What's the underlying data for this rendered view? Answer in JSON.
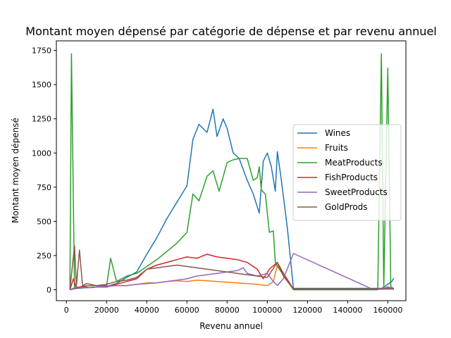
{
  "chart_data": {
    "type": "line",
    "title": "Montant moyen dépensé par catégorie de dépense et par revenu annuel",
    "xlabel": "Revenu annuel",
    "ylabel": "Montant moyen dépensé",
    "xlim": [
      -5000,
      169000
    ],
    "ylim": [
      -80,
      1820
    ],
    "xticks": [
      0,
      20000,
      40000,
      60000,
      80000,
      100000,
      120000,
      140000,
      160000
    ],
    "xtick_labels": [
      "0",
      "20000",
      "40000",
      "60000",
      "80000",
      "100000",
      "120000",
      "140000",
      "160000"
    ],
    "yticks": [
      0,
      250,
      500,
      750,
      1000,
      1250,
      1500,
      1750
    ],
    "ytick_labels": [
      "0",
      "250",
      "500",
      "750",
      "1000",
      "1250",
      "1500",
      "1750"
    ],
    "legend_position": "center-right",
    "grid": false,
    "series": [
      {
        "name": "Wines",
        "color": "#1f77b4",
        "points": [
          [
            1730,
            0
          ],
          [
            5000,
            10
          ],
          [
            10000,
            15
          ],
          [
            15000,
            20
          ],
          [
            20000,
            25
          ],
          [
            25000,
            45
          ],
          [
            30000,
            90
          ],
          [
            35000,
            130
          ],
          [
            40000,
            260
          ],
          [
            45000,
            380
          ],
          [
            50000,
            520
          ],
          [
            55000,
            640
          ],
          [
            60000,
            760
          ],
          [
            63000,
            1100
          ],
          [
            66000,
            1210
          ],
          [
            70000,
            1150
          ],
          [
            73000,
            1320
          ],
          [
            75000,
            1120
          ],
          [
            78000,
            1250
          ],
          [
            80000,
            1180
          ],
          [
            83000,
            1000
          ],
          [
            86000,
            960
          ],
          [
            90000,
            800
          ],
          [
            93000,
            700
          ],
          [
            96000,
            560
          ],
          [
            98000,
            940
          ],
          [
            100000,
            1000
          ],
          [
            102000,
            900
          ],
          [
            104000,
            720
          ],
          [
            105000,
            1010
          ],
          [
            107000,
            800
          ],
          [
            110000,
            450
          ],
          [
            113000,
            10
          ],
          [
            157000,
            10
          ],
          [
            160000,
            40
          ],
          [
            162000,
            60
          ],
          [
            163000,
            85
          ]
        ]
      },
      {
        "name": "Fruits",
        "color": "#ff7f0e",
        "points": [
          [
            1730,
            0
          ],
          [
            5000,
            20
          ],
          [
            10000,
            15
          ],
          [
            15000,
            20
          ],
          [
            20000,
            30
          ],
          [
            25000,
            30
          ],
          [
            30000,
            30
          ],
          [
            35000,
            40
          ],
          [
            40000,
            50
          ],
          [
            45000,
            50
          ],
          [
            50000,
            60
          ],
          [
            55000,
            65
          ],
          [
            60000,
            60
          ],
          [
            65000,
            70
          ],
          [
            70000,
            65
          ],
          [
            75000,
            60
          ],
          [
            80000,
            55
          ],
          [
            85000,
            50
          ],
          [
            90000,
            45
          ],
          [
            95000,
            40
          ],
          [
            100000,
            30
          ],
          [
            103000,
            60
          ],
          [
            105000,
            180
          ],
          [
            108000,
            120
          ],
          [
            113000,
            5
          ],
          [
            157000,
            5
          ],
          [
            160000,
            10
          ],
          [
            163000,
            5
          ]
        ]
      },
      {
        "name": "MeatProducts",
        "color": "#2ca02c",
        "points": [
          [
            1730,
            0
          ],
          [
            2500,
            1725
          ],
          [
            4000,
            10
          ],
          [
            6000,
            20
          ],
          [
            10000,
            30
          ],
          [
            15000,
            30
          ],
          [
            20000,
            30
          ],
          [
            22000,
            230
          ],
          [
            25000,
            60
          ],
          [
            30000,
            100
          ],
          [
            35000,
            120
          ],
          [
            40000,
            170
          ],
          [
            45000,
            220
          ],
          [
            50000,
            280
          ],
          [
            55000,
            340
          ],
          [
            60000,
            420
          ],
          [
            63000,
            700
          ],
          [
            66000,
            650
          ],
          [
            70000,
            830
          ],
          [
            73000,
            870
          ],
          [
            76000,
            720
          ],
          [
            80000,
            930
          ],
          [
            83000,
            950
          ],
          [
            86000,
            960
          ],
          [
            90000,
            960
          ],
          [
            93000,
            800
          ],
          [
            95000,
            820
          ],
          [
            96000,
            900
          ],
          [
            97000,
            730
          ],
          [
            99000,
            700
          ],
          [
            101000,
            420
          ],
          [
            103000,
            430
          ],
          [
            104000,
            200
          ],
          [
            106000,
            150
          ],
          [
            113000,
            0
          ],
          [
            155000,
            0
          ],
          [
            156800,
            1725
          ],
          [
            158000,
            10
          ],
          [
            160000,
            1620
          ],
          [
            161500,
            20
          ],
          [
            163000,
            10
          ]
        ]
      },
      {
        "name": "FishProducts",
        "color": "#d62728",
        "points": [
          [
            1730,
            0
          ],
          [
            3500,
            80
          ],
          [
            5000,
            10
          ],
          [
            8000,
            25
          ],
          [
            12000,
            15
          ],
          [
            15000,
            20
          ],
          [
            20000,
            20
          ],
          [
            25000,
            40
          ],
          [
            30000,
            60
          ],
          [
            35000,
            80
          ],
          [
            40000,
            150
          ],
          [
            45000,
            180
          ],
          [
            50000,
            200
          ],
          [
            55000,
            220
          ],
          [
            60000,
            240
          ],
          [
            65000,
            230
          ],
          [
            70000,
            260
          ],
          [
            75000,
            240
          ],
          [
            80000,
            230
          ],
          [
            85000,
            220
          ],
          [
            90000,
            200
          ],
          [
            95000,
            150
          ],
          [
            98000,
            80
          ],
          [
            101000,
            150
          ],
          [
            105000,
            200
          ],
          [
            108000,
            120
          ],
          [
            113000,
            5
          ],
          [
            157000,
            5
          ],
          [
            160000,
            20
          ],
          [
            163000,
            5
          ]
        ]
      },
      {
        "name": "SweetProducts",
        "color": "#9467bd",
        "points": [
          [
            1730,
            0
          ],
          [
            5000,
            20
          ],
          [
            10000,
            15
          ],
          [
            15000,
            20
          ],
          [
            20000,
            25
          ],
          [
            25000,
            30
          ],
          [
            30000,
            30
          ],
          [
            35000,
            40
          ],
          [
            40000,
            45
          ],
          [
            45000,
            50
          ],
          [
            50000,
            60
          ],
          [
            55000,
            70
          ],
          [
            60000,
            80
          ],
          [
            65000,
            100
          ],
          [
            70000,
            110
          ],
          [
            75000,
            120
          ],
          [
            80000,
            130
          ],
          [
            85000,
            140
          ],
          [
            88000,
            160
          ],
          [
            90000,
            120
          ],
          [
            95000,
            100
          ],
          [
            100000,
            120
          ],
          [
            103000,
            60
          ],
          [
            105000,
            30
          ],
          [
            108000,
            80
          ],
          [
            113000,
            265
          ],
          [
            153000,
            0
          ],
          [
            160000,
            15
          ],
          [
            163000,
            5
          ]
        ]
      },
      {
        "name": "GoldProds",
        "color": "#8c564b",
        "points": [
          [
            1730,
            0
          ],
          [
            4000,
            320
          ],
          [
            5000,
            30
          ],
          [
            6500,
            290
          ],
          [
            8000,
            30
          ],
          [
            10000,
            45
          ],
          [
            15000,
            30
          ],
          [
            20000,
            40
          ],
          [
            25000,
            60
          ],
          [
            30000,
            70
          ],
          [
            35000,
            90
          ],
          [
            40000,
            150
          ],
          [
            45000,
            160
          ],
          [
            50000,
            170
          ],
          [
            55000,
            180
          ],
          [
            60000,
            170
          ],
          [
            65000,
            160
          ],
          [
            70000,
            150
          ],
          [
            75000,
            140
          ],
          [
            80000,
            130
          ],
          [
            85000,
            120
          ],
          [
            90000,
            110
          ],
          [
            95000,
            100
          ],
          [
            100000,
            90
          ],
          [
            105000,
            200
          ],
          [
            108000,
            100
          ],
          [
            113000,
            5
          ],
          [
            157000,
            5
          ],
          [
            160000,
            5
          ],
          [
            163000,
            5
          ]
        ]
      }
    ]
  }
}
